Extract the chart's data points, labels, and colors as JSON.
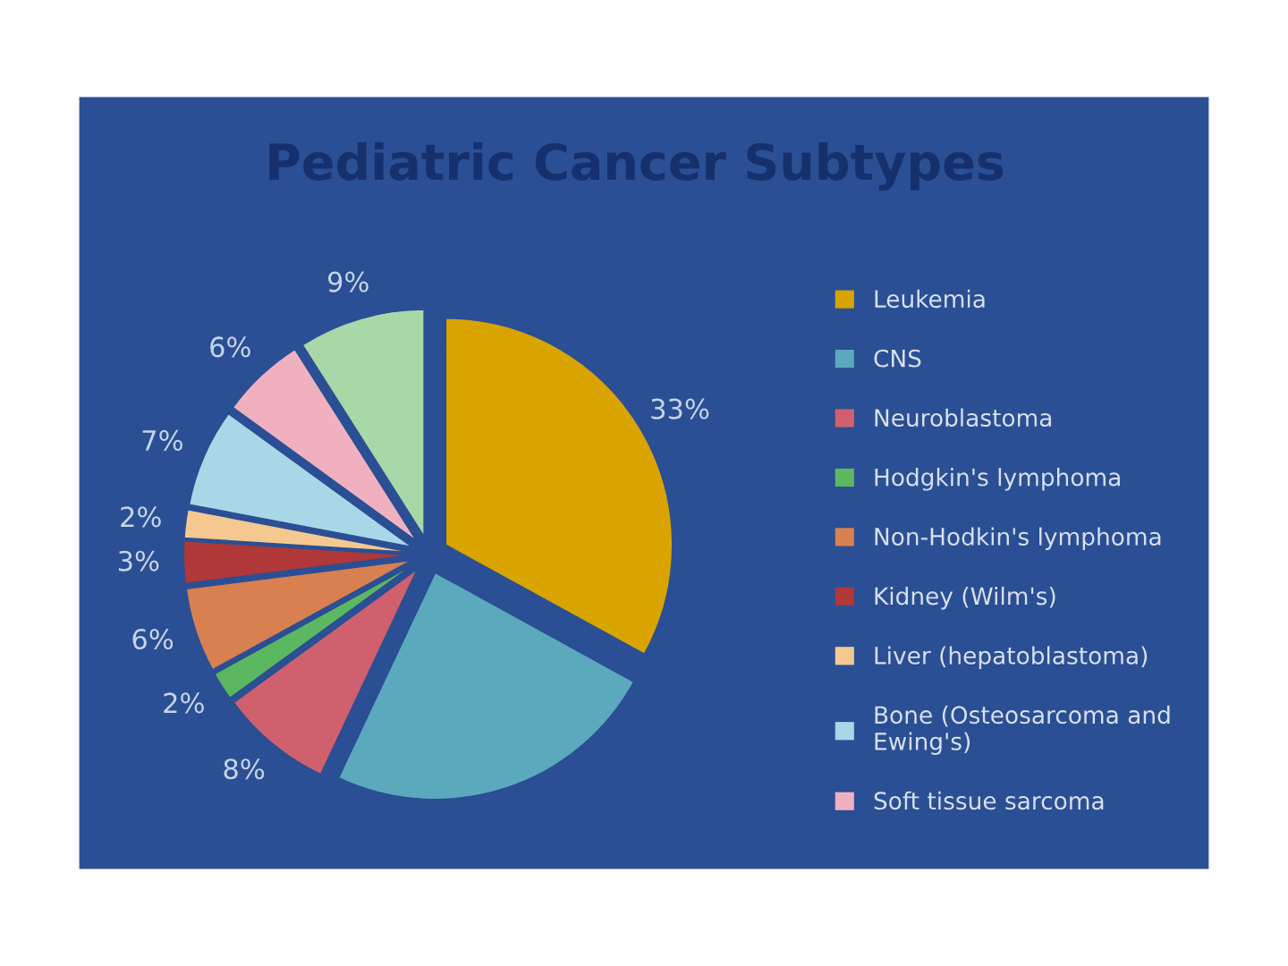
{
  "chart_data": {
    "type": "pie",
    "title": "Pediatric Cancer Subtypes",
    "categories": [
      "Leukemia",
      "CNS",
      "Neuroblastoma",
      "Hodgkin's lymphoma",
      "Non-Hodkin's lymphoma",
      "Kidney (Wilm's)",
      "Liver (hepatoblastoma)",
      "Bone (Osteosarcoma and Ewing's)",
      "Soft tissue sarcoma",
      null
    ],
    "values": [
      33,
      24,
      8,
      2,
      6,
      3,
      2,
      7,
      6,
      9
    ],
    "value_labels": [
      "33%",
      null,
      "8%",
      "2%",
      "6%",
      "3%",
      "2%",
      "7%",
      "6%",
      "9%"
    ],
    "colors": [
      "#d9a300",
      "#5aa9bd",
      "#d0606e",
      "#5cb860",
      "#d98050",
      "#b03838",
      "#f5c890",
      "#a8d8e8",
      "#f0b0c0",
      "#a8d8a8"
    ],
    "legend": "right"
  }
}
